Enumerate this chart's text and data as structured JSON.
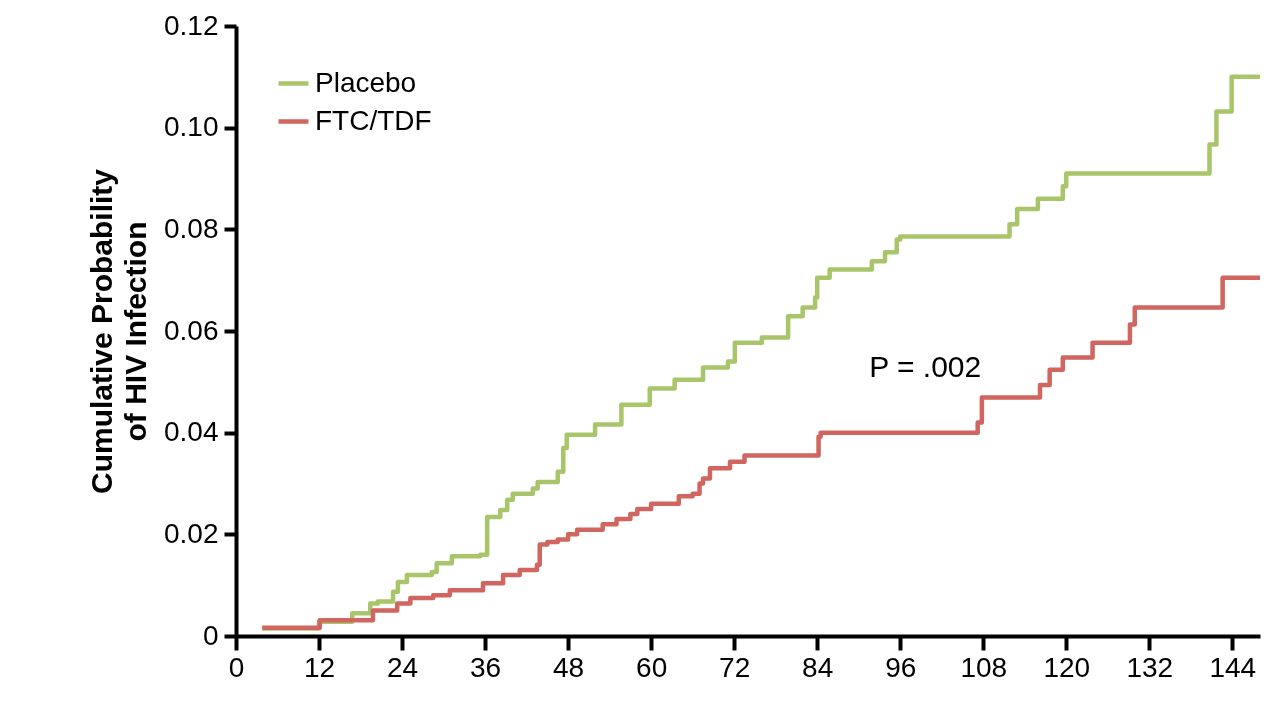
{
  "chart_data": {
    "type": "step",
    "ylabel": "Cumulative Probability of HIV Infection",
    "xlim": [
      0,
      148
    ],
    "xticks": [
      0,
      12,
      24,
      36,
      48,
      60,
      72,
      84,
      96,
      108,
      120,
      132,
      144
    ],
    "ylim": [
      0,
      0.12
    ],
    "yticks": [
      0,
      0.02,
      0.04,
      0.06,
      {
        "value": 0.08,
        "label": "0.08"
      },
      {
        "value": 0.1,
        "label": "0.10"
      },
      0.12
    ],
    "grid": false,
    "legend": "top left",
    "line_style": "solid",
    "marker": "none",
    "annotations": [
      "P = .002"
    ],
    "series": [
      {
        "name": "Placebo",
        "color": "#a9c56a",
        "x": [
          3.8,
          12,
          16.8,
          19.4,
          20.5,
          22.7,
          23.4,
          24.7,
          28.3,
          29,
          31.2,
          35.3,
          36.3,
          38.2,
          39.2,
          40,
          42.9,
          43.6,
          46.5,
          47.3,
          47.8,
          51.9,
          55.7,
          59.8,
          63.4,
          67.5,
          71.1,
          72.1,
          76,
          79.8,
          81.9,
          83.7,
          84,
          85.8,
          91.9,
          93.8,
          95.5,
          96,
          111.8,
          112.9,
          115.9,
          119.5,
          120,
          140.7,
          141.7,
          143.9,
          148
        ],
        "values": [
          0.0015,
          0.0028,
          0.0045,
          0.0064,
          0.0068,
          0.0087,
          0.0106,
          0.012,
          0.0126,
          0.0143,
          0.0157,
          0.016,
          0.0234,
          0.0248,
          0.0268,
          0.028,
          0.029,
          0.0303,
          0.0323,
          0.037,
          0.0396,
          0.0416,
          0.0455,
          0.0487,
          0.0504,
          0.0528,
          0.054,
          0.0577,
          0.0587,
          0.0629,
          0.0646,
          0.0666,
          0.0705,
          0.0721,
          0.0737,
          0.0755,
          0.078,
          0.0786,
          0.081,
          0.084,
          0.086,
          0.0885,
          0.091,
          0.0967,
          0.1032,
          0.11,
          0.11
        ]
      },
      {
        "name": "FTC/TDF",
        "color": "#d0665f",
        "x": [
          3.8,
          12.1,
          19.8,
          23.3,
          25.2,
          28.5,
          30.9,
          35.7,
          38.6,
          41,
          43.5,
          43.9,
          45,
          46.5,
          48,
          49.3,
          53,
          55,
          57,
          58,
          60,
          64,
          66,
          67,
          67.5,
          68.5,
          71.4,
          73.5,
          84.2,
          84.5,
          107.2,
          107.8,
          116.2,
          117.6,
          119.5,
          123.8,
          129.2,
          129.9,
          142.6,
          148
        ],
        "values": [
          0.0016,
          0.0031,
          0.005,
          0.0064,
          0.0075,
          0.008,
          0.009,
          0.0104,
          0.012,
          0.013,
          0.014,
          0.018,
          0.0185,
          0.019,
          0.02,
          0.0209,
          0.022,
          0.023,
          0.024,
          0.025,
          0.026,
          0.0275,
          0.028,
          0.03,
          0.031,
          0.033,
          0.0343,
          0.0355,
          0.0392,
          0.04,
          0.042,
          0.0469,
          0.0494,
          0.0524,
          0.0548,
          0.0577,
          0.0613,
          0.0646,
          0.0705,
          0.0703
        ]
      }
    ]
  }
}
